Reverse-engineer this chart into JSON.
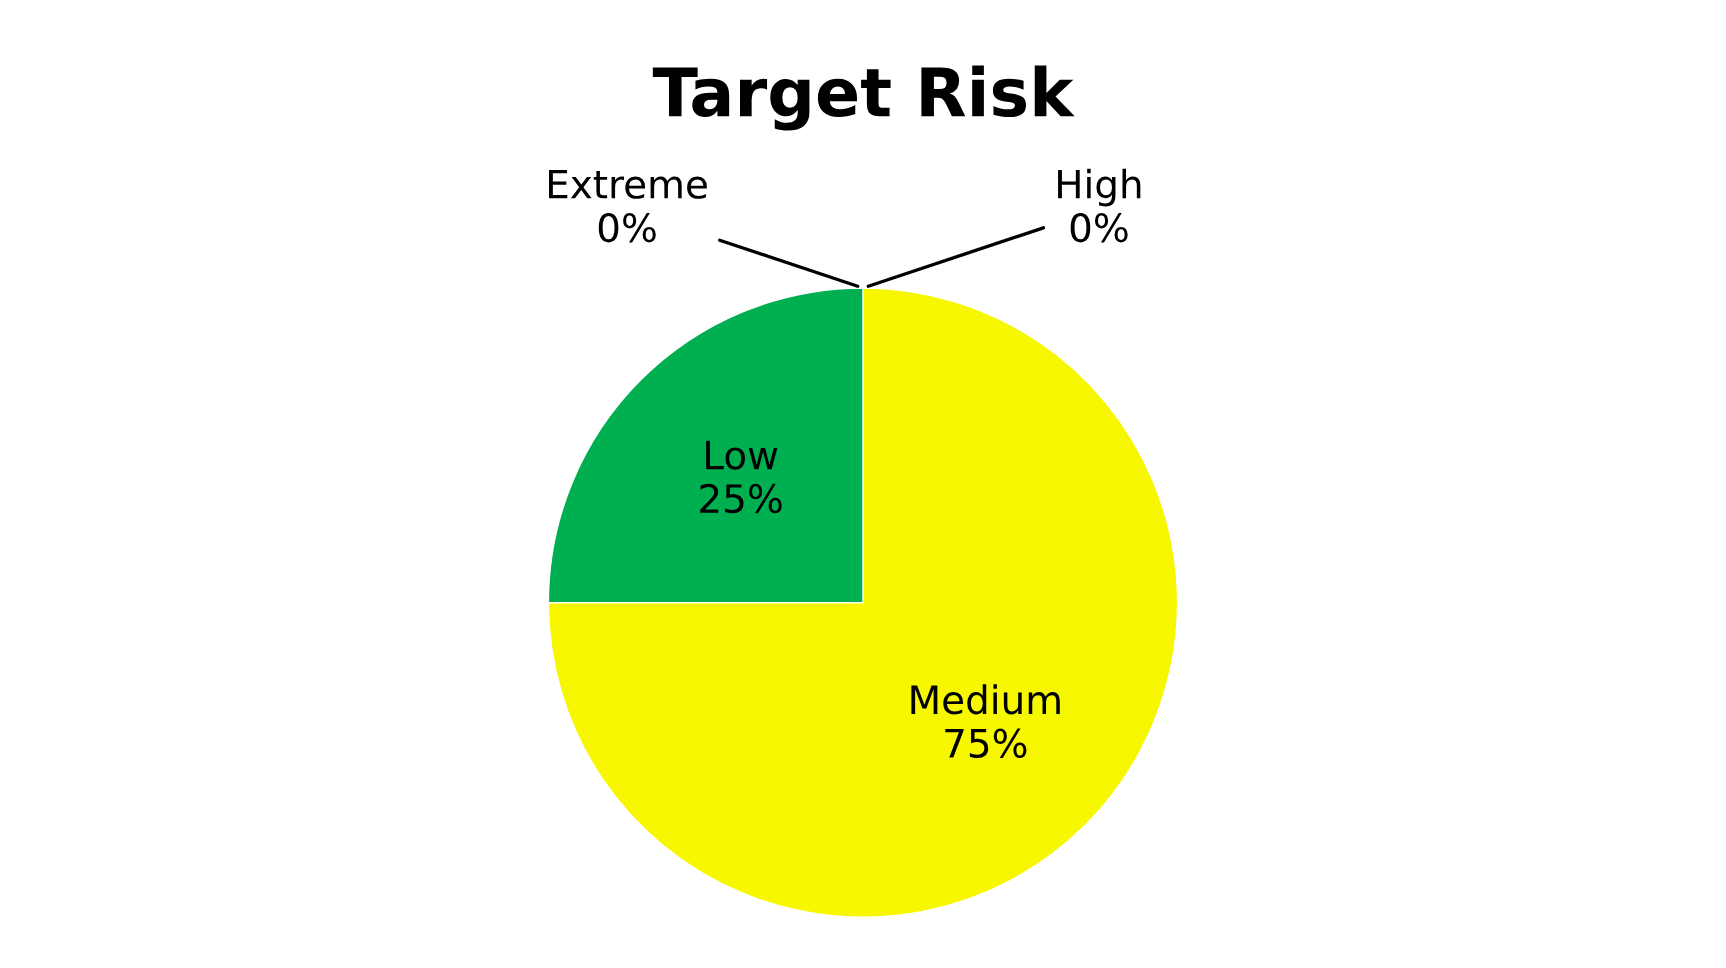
{
  "chart_data": {
    "type": "pie",
    "title": "Target Risk",
    "categories": [
      "Medium",
      "Low",
      "Extreme",
      "High"
    ],
    "values": [
      75,
      25,
      0,
      0
    ],
    "value_labels": [
      "75%",
      "25%",
      "0%",
      "0%"
    ],
    "colors": [
      "#f7f700",
      "#00b050",
      null,
      null
    ],
    "legend": false
  }
}
